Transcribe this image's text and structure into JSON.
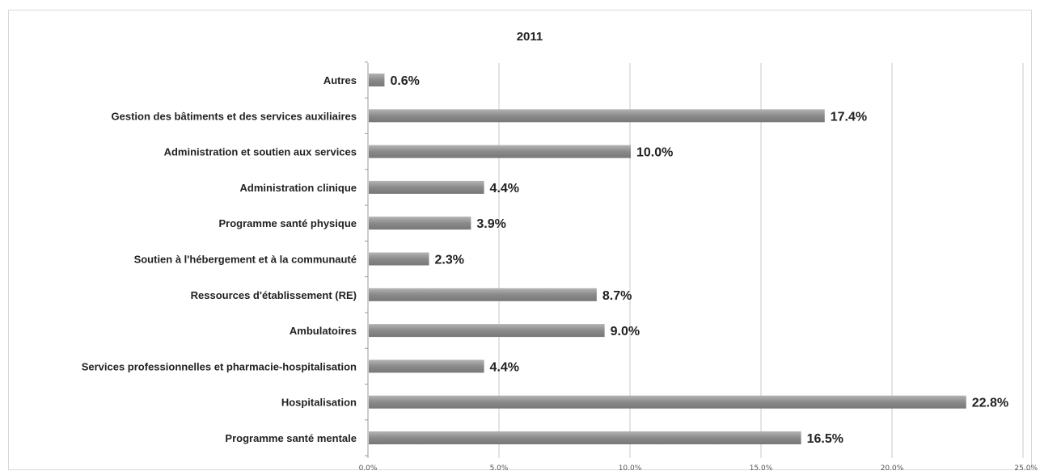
{
  "chart_data": {
    "type": "bar",
    "orientation": "horizontal",
    "title": "2011",
    "categories": [
      "Autres",
      "Gestion des bâtiments et des services auxiliaires",
      "Administration et soutien aux services",
      "Administration clinique",
      "Programme santé physique",
      "Soutien à l'hébergement et à la communauté",
      "Ressources d'établissement (RE)",
      "Ambulatoires",
      "Services professionnelles et pharmacie-hospitalisation",
      "Hospitalisation",
      "Programme santé mentale"
    ],
    "values": [
      0.6,
      17.4,
      10.0,
      4.4,
      3.9,
      2.3,
      8.7,
      9.0,
      4.4,
      22.8,
      16.5
    ],
    "value_labels": [
      "0.6%",
      "17.4%",
      "10.0%",
      "4.4%",
      "3.9%",
      "2.3%",
      "8.7%",
      "9.0%",
      "4.4%",
      "22.8%",
      "16.5%"
    ],
    "xticks": [
      0,
      5,
      10,
      15,
      20,
      25
    ],
    "xtick_labels": [
      "0.0%",
      "5.0%",
      "10.0%",
      "15.0%",
      "20.0%",
      "25.0%"
    ],
    "xlim": [
      0,
      25
    ],
    "xlabel": "",
    "ylabel": "",
    "grid": "vertical",
    "legend": "none",
    "bar_color": "#8f8f8f",
    "grid_color": "#c8c8c8"
  }
}
